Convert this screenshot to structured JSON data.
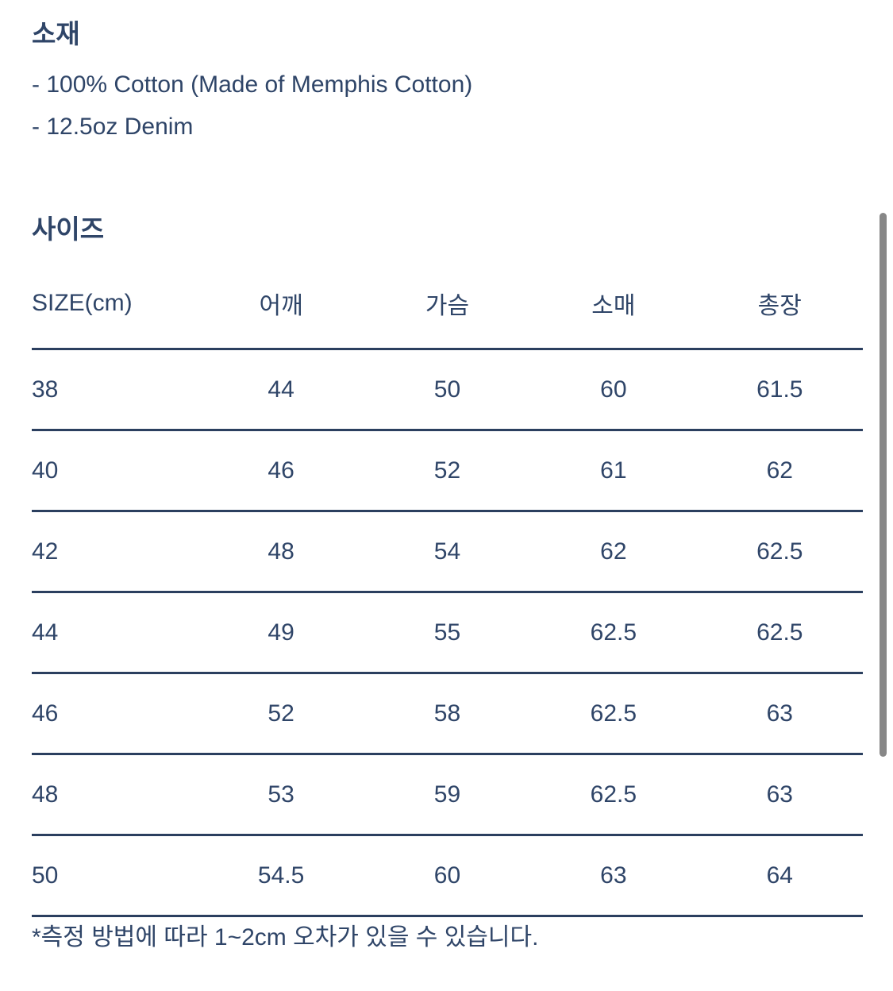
{
  "colors": {
    "text": "#2F4568",
    "table_line": "#2B3F5F",
    "scrollbar_thumb": "#878787",
    "background": "#FFFFFF"
  },
  "material": {
    "heading": "소재",
    "items": [
      "- 100% Cotton (Made of Memphis Cotton)",
      "- 12.5oz Denim"
    ]
  },
  "size": {
    "heading": "사이즈",
    "note": "*측정 방법에 따라 1~2cm 오차가 있을 수 있습니다."
  },
  "size_table": {
    "columns": [
      "SIZE(cm)",
      "어깨",
      "가슴",
      "소매",
      "총장"
    ],
    "rows": [
      [
        "38",
        "44",
        "50",
        "60",
        "61.5"
      ],
      [
        "40",
        "46",
        "52",
        "61",
        "62"
      ],
      [
        "42",
        "48",
        "54",
        "62",
        "62.5"
      ],
      [
        "44",
        "49",
        "55",
        "62.5",
        "62.5"
      ],
      [
        "46",
        "52",
        "58",
        "62.5",
        "63"
      ],
      [
        "48",
        "53",
        "59",
        "62.5",
        "63"
      ],
      [
        "50",
        "54.5",
        "60",
        "63",
        "64"
      ]
    ]
  }
}
